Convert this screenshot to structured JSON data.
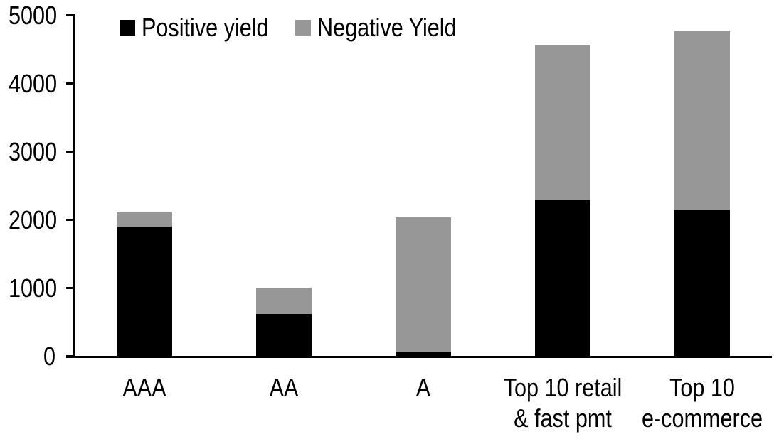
{
  "chart_data": {
    "type": "bar",
    "stacked": true,
    "title": "",
    "xlabel": "",
    "ylabel": "",
    "categories": [
      "AAA",
      "AA",
      "A",
      "Top 10 retail\n& fast pmt",
      "Top 10\ne-commerce"
    ],
    "series": [
      {
        "name": "Positive yield",
        "color": "#000000",
        "values": [
          1900,
          620,
          50,
          2280,
          2140
        ]
      },
      {
        "name": "Negative Yield",
        "color": "#979797",
        "values": [
          220,
          380,
          1980,
          2280,
          2620
        ]
      }
    ],
    "stack_totals": [
      2120,
      1000,
      2030,
      4560,
      4760
    ],
    "ylim": [
      0,
      5000
    ],
    "yticks": [
      0,
      1000,
      2000,
      3000,
      4000,
      5000
    ],
    "grid": false,
    "legend_position": "top",
    "axis_color": "#000000",
    "background_color": "#ffffff"
  },
  "legend": {
    "items": [
      {
        "label": "Positive yield",
        "color": "#000000"
      },
      {
        "label": "Negative Yield",
        "color": "#979797"
      }
    ]
  }
}
